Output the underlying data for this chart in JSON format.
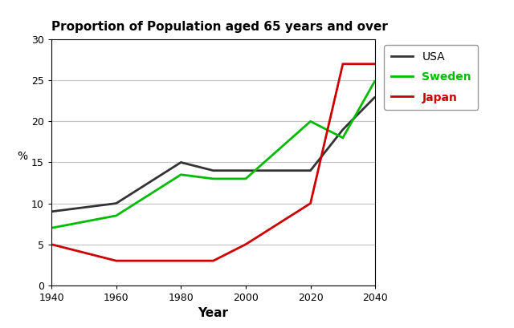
{
  "title": "Proportion of Population aged 65 years and over",
  "xlabel": "Year",
  "ylabel": "%",
  "xlim": [
    1940,
    2040
  ],
  "ylim": [
    0,
    30
  ],
  "yticks": [
    0,
    5,
    10,
    15,
    20,
    25,
    30
  ],
  "xticks": [
    1940,
    1960,
    1980,
    2000,
    2020,
    2040
  ],
  "series": {
    "USA": {
      "color": "#333333",
      "linewidth": 2.0,
      "years": [
        1940,
        1960,
        1980,
        1990,
        2000,
        2020,
        2030,
        2040
      ],
      "values": [
        9,
        10,
        15,
        14,
        14,
        14,
        19,
        23
      ]
    },
    "Sweden": {
      "color": "#00bb00",
      "linewidth": 2.0,
      "years": [
        1940,
        1960,
        1980,
        1990,
        2000,
        2020,
        2030,
        2040
      ],
      "values": [
        7,
        8.5,
        13.5,
        13,
        13,
        20,
        18,
        25
      ]
    },
    "Japan": {
      "color": "#cc0000",
      "linewidth": 2.0,
      "years": [
        1940,
        1960,
        1980,
        1990,
        2000,
        2020,
        2030,
        2040
      ],
      "values": [
        5,
        3,
        3,
        3,
        5,
        10,
        27,
        27
      ]
    }
  },
  "legend_colors": {
    "USA": "#333333",
    "Sweden": "#00bb00",
    "Japan": "#cc0000"
  },
  "legend_text_colors": {
    "USA": "#000000",
    "Sweden": "#00bb00",
    "Japan": "#cc0000"
  },
  "legend_text_weights": {
    "USA": "normal",
    "Sweden": "bold",
    "Japan": "bold"
  },
  "background_color": "#ffffff",
  "plot_bg_color": "#ffffff",
  "grid_color": "#aaaaaa",
  "grid_alpha": 0.7
}
